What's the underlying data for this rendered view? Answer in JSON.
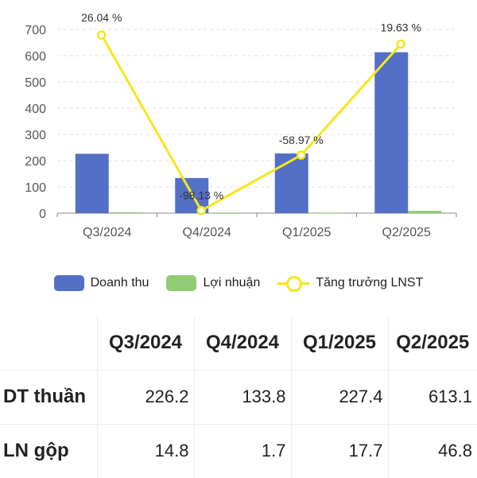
{
  "chart_data": {
    "type": "bar",
    "categories": [
      "Q3/2024",
      "Q4/2024",
      "Q1/2025",
      "Q2/2025"
    ],
    "series": [
      {
        "name": "Doanh thu",
        "type": "bar",
        "values": [
          226.2,
          133.8,
          227.4,
          613.1
        ],
        "color": "#5470c6"
      },
      {
        "name": "Lợi nhuận",
        "type": "bar",
        "values": [
          3,
          0.5,
          1,
          9
        ],
        "color": "#91cc75"
      },
      {
        "name": "Tăng trưởng LNST",
        "type": "line",
        "values": [
          26.04,
          -98.13,
          -58.97,
          19.63
        ],
        "labels": [
          "26.04 %",
          "-98.13 %",
          "-58.97 %",
          "19.63 %"
        ],
        "color": "#f5e71b"
      }
    ],
    "yticks": [
      0,
      100,
      200,
      300,
      400,
      500,
      600,
      700
    ],
    "ylim": [
      0,
      700
    ],
    "line_axis_range": [
      -100,
      30
    ],
    "legend_position": "bottom",
    "grid": true
  },
  "legend": [
    {
      "label": "Doanh thu",
      "color": "#5470c6",
      "kind": "bar"
    },
    {
      "label": "Lợi nhuận",
      "color": "#91cc75",
      "kind": "bar"
    },
    {
      "label": "Tăng trưởng LNST",
      "color": "#f5e71b",
      "kind": "line"
    }
  ],
  "table": {
    "columns": [
      "",
      "Q3/2024",
      "Q4/2024",
      "Q1/2025",
      "Q2/2025"
    ],
    "rows": [
      {
        "label": "DT thuần",
        "values": [
          "226.2",
          "133.8",
          "227.4",
          "613.1"
        ]
      },
      {
        "label": "LN gộp",
        "values": [
          "14.8",
          "1.7",
          "17.7",
          "46.8"
        ]
      }
    ]
  }
}
